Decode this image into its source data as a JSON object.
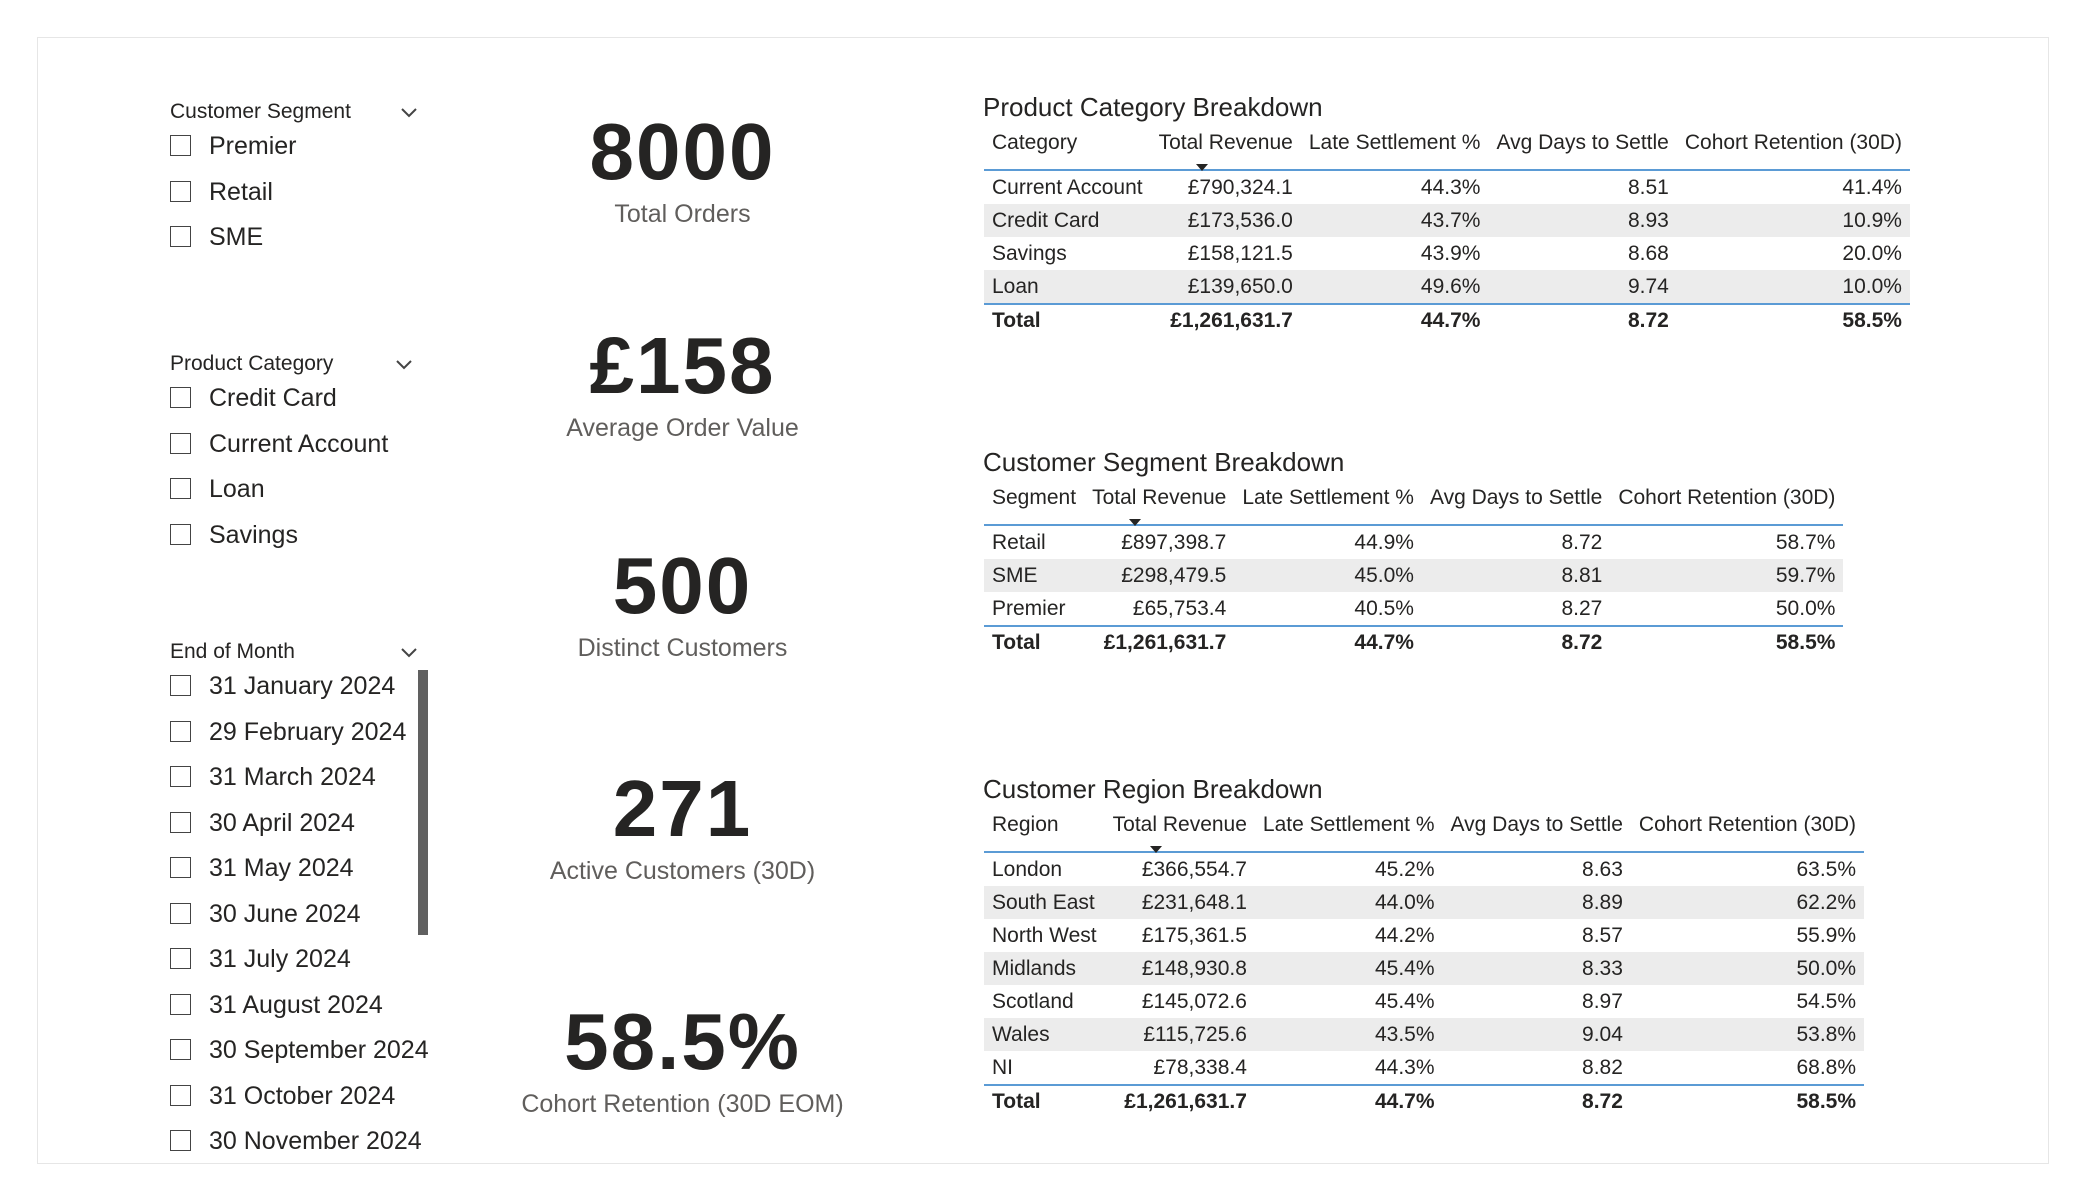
{
  "slicers": [
    {
      "title": "Customer Segment",
      "options": [
        "Premier",
        "Retail",
        "SME"
      ]
    },
    {
      "title": "Product Category",
      "options": [
        "Credit Card",
        "Current Account",
        "Loan",
        "Savings"
      ]
    },
    {
      "title": "End of Month",
      "options": [
        "31 January 2024",
        "29 February 2024",
        "31 March 2024",
        "30 April 2024",
        "31 May 2024",
        "30 June 2024",
        "31 July 2024",
        "31 August 2024",
        "30 September 2024",
        "31 October 2024",
        "30 November 2024"
      ]
    }
  ],
  "cards": [
    {
      "value": "8000",
      "label": "Total Orders"
    },
    {
      "value": "£158",
      "label": "Average Order Value"
    },
    {
      "value": "500",
      "label": "Distinct Customers"
    },
    {
      "value": "271",
      "label": "Active Customers (30D)"
    },
    {
      "value": "58.5%",
      "label": "Cohort Retention (30D EOM)"
    }
  ],
  "tables": [
    {
      "title": "Product Category Breakdown",
      "columns": [
        "Category",
        "Total Revenue",
        "Late Settlement %",
        "Avg Days to Settle",
        "Cohort Retention (30D)"
      ],
      "rows": [
        [
          "Current Account",
          "£790,324.1",
          "44.3%",
          "8.51",
          "41.4%"
        ],
        [
          "Credit Card",
          "£173,536.0",
          "43.7%",
          "8.93",
          "10.9%"
        ],
        [
          "Savings",
          "£158,121.5",
          "43.9%",
          "8.68",
          "20.0%"
        ],
        [
          "Loan",
          "£139,650.0",
          "49.6%",
          "9.74",
          "10.0%"
        ]
      ],
      "total": [
        "Total",
        "£1,261,631.7",
        "44.7%",
        "8.72",
        "58.5%"
      ]
    },
    {
      "title": "Customer Segment Breakdown",
      "columns": [
        "Segment",
        "Total Revenue",
        "Late Settlement %",
        "Avg Days to Settle",
        "Cohort Retention (30D)"
      ],
      "rows": [
        [
          "Retail",
          "£897,398.7",
          "44.9%",
          "8.72",
          "58.7%"
        ],
        [
          "SME",
          "£298,479.5",
          "45.0%",
          "8.81",
          "59.7%"
        ],
        [
          "Premier",
          "£65,753.4",
          "40.5%",
          "8.27",
          "50.0%"
        ]
      ],
      "total": [
        "Total",
        "£1,261,631.7",
        "44.7%",
        "8.72",
        "58.5%"
      ]
    },
    {
      "title": "Customer Region Breakdown",
      "columns": [
        "Region",
        "Total Revenue",
        "Late Settlement %",
        "Avg Days to Settle",
        "Cohort Retention (30D)"
      ],
      "rows": [
        [
          "London",
          "£366,554.7",
          "45.2%",
          "8.63",
          "63.5%"
        ],
        [
          "South East",
          "£231,648.1",
          "44.0%",
          "8.89",
          "62.2%"
        ],
        [
          "North West",
          "£175,361.5",
          "44.2%",
          "8.57",
          "55.9%"
        ],
        [
          "Midlands",
          "£148,930.8",
          "45.4%",
          "8.33",
          "50.0%"
        ],
        [
          "Scotland",
          "£145,072.6",
          "45.4%",
          "8.97",
          "54.5%"
        ],
        [
          "Wales",
          "£115,725.6",
          "43.5%",
          "9.04",
          "53.8%"
        ],
        [
          "NI",
          "£78,338.4",
          "44.3%",
          "8.82",
          "68.8%"
        ]
      ],
      "total": [
        "Total",
        "£1,261,631.7",
        "44.7%",
        "8.72",
        "58.5%"
      ]
    }
  ]
}
